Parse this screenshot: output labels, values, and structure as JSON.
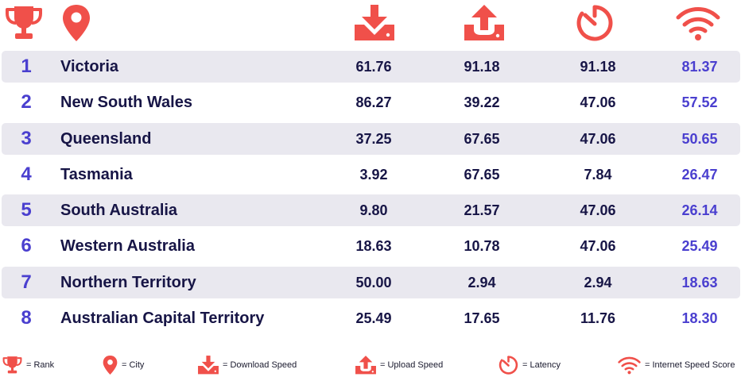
{
  "colors": {
    "accent_red": "#f0504a",
    "rank_blue": "#4a3fcf",
    "text_dark": "#171546",
    "row_shade": "#e9e8ef"
  },
  "header_icons": [
    "trophy-icon",
    "location-pin-icon",
    "download-icon",
    "upload-icon",
    "latency-timer-icon",
    "wifi-icon"
  ],
  "rows": [
    {
      "rank": "1",
      "region": "Victoria",
      "download": "61.76",
      "upload": "91.18",
      "latency": "91.18",
      "score": "81.37"
    },
    {
      "rank": "2",
      "region": "New South Wales",
      "download": "86.27",
      "upload": "39.22",
      "latency": "47.06",
      "score": "57.52"
    },
    {
      "rank": "3",
      "region": "Queensland",
      "download": "37.25",
      "upload": "67.65",
      "latency": "47.06",
      "score": "50.65"
    },
    {
      "rank": "4",
      "region": "Tasmania",
      "download": "3.92",
      "upload": "67.65",
      "latency": "7.84",
      "score": "26.47"
    },
    {
      "rank": "5",
      "region": "South Australia",
      "download": "9.80",
      "upload": "21.57",
      "latency": "47.06",
      "score": "26.14"
    },
    {
      "rank": "6",
      "region": "Western Australia",
      "download": "18.63",
      "upload": "10.78",
      "latency": "47.06",
      "score": "25.49"
    },
    {
      "rank": "7",
      "region": "Northern Territory",
      "download": "50.00",
      "upload": "2.94",
      "latency": "2.94",
      "score": "18.63"
    },
    {
      "rank": "8",
      "region": "Australian Capital Territory",
      "download": "25.49",
      "upload": "17.65",
      "latency": "11.76",
      "score": "18.30"
    }
  ],
  "legend": {
    "rank": "= Rank",
    "city": "= City",
    "download": "= Download Speed",
    "upload": "= Upload Speed",
    "latency": "= Latency",
    "score": "= Internet Speed Score"
  }
}
